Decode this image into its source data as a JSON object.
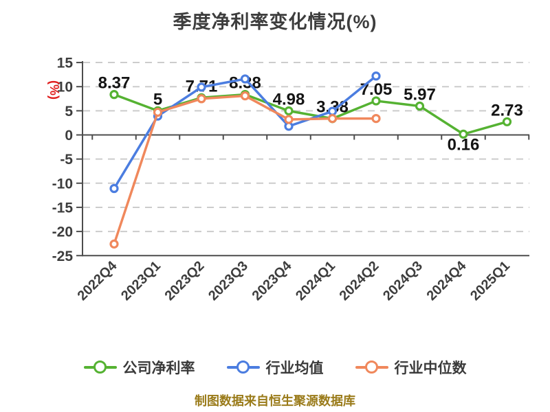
{
  "title": "季度净利率变化情况(%)",
  "footer": "制图数据来自恒生聚源数据库",
  "colors": {
    "title_text": "#3d3d3d",
    "axis": "#4d4d4d",
    "grid": "#cccccc",
    "tick_text": "#3d3d3d",
    "data_label_text": "#141414",
    "unit_text": "#e01f1f",
    "footer_text": "#9a7b1a",
    "background": "#ffffff"
  },
  "chart_data": {
    "type": "line",
    "title": "季度净利率变化情况(%)",
    "unit_label": "(%)",
    "xlabel": "",
    "ylabel": "(%)",
    "categories": [
      "2022Q4",
      "2023Q1",
      "2023Q2",
      "2023Q3",
      "2023Q4",
      "2024Q1",
      "2024Q2",
      "2024Q3",
      "2024Q4",
      "2025Q1"
    ],
    "ylim": [
      -25,
      15
    ],
    "ytick_step": 5,
    "yticks": [
      15,
      10,
      5,
      0,
      -5,
      -10,
      -15,
      -20,
      -25
    ],
    "grid": "dashed-horizontal",
    "x_label_rotate": 45,
    "legend_position": "bottom",
    "series": [
      {
        "name": "公司净利率",
        "color": "#55b232",
        "values": [
          8.37,
          5,
          7.71,
          8.38,
          4.98,
          3.38,
          7.05,
          5.97,
          0.16,
          2.73
        ],
        "labels": [
          "8.37",
          "5",
          "7.71",
          "8.38",
          "4.98",
          "3.38",
          "7.05",
          "5.97",
          "0.16",
          "2.73"
        ]
      },
      {
        "name": "行业均值",
        "color": "#4b7de0",
        "values": [
          -11.1,
          3.9,
          9.9,
          11.6,
          1.8,
          4.9,
          12.2,
          null,
          null,
          null
        ],
        "labels": null
      },
      {
        "name": "行业中位数",
        "color": "#f0885c",
        "values": [
          -22.6,
          4.7,
          7.5,
          8.1,
          3.2,
          3.4,
          3.4,
          null,
          null,
          null
        ],
        "labels": null
      }
    ]
  }
}
